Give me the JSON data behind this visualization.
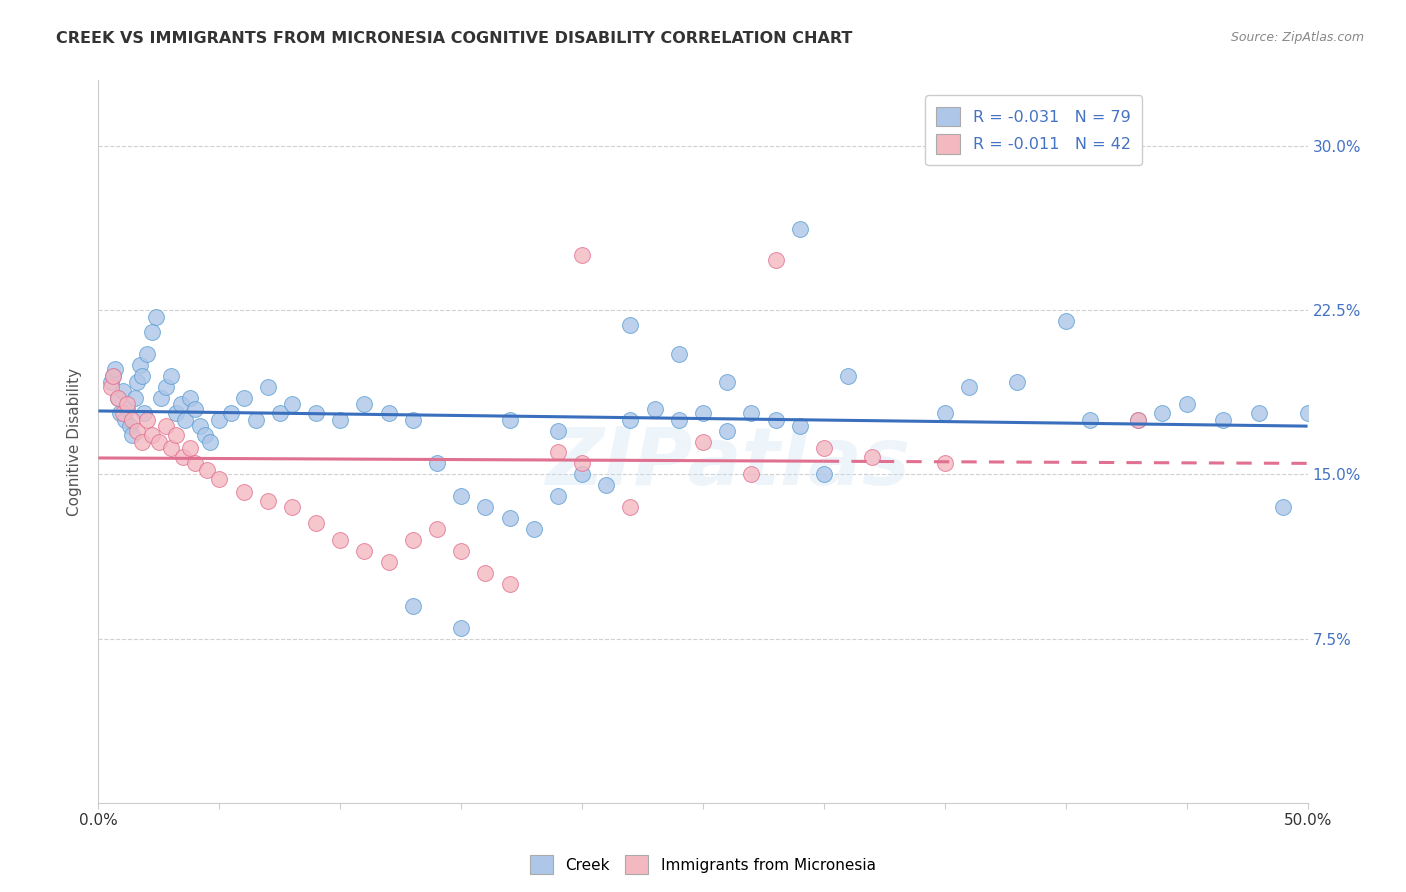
{
  "title": "CREEK VS IMMIGRANTS FROM MICRONESIA COGNITIVE DISABILITY CORRELATION CHART",
  "source": "Source: ZipAtlas.com",
  "ylabel": "Cognitive Disability",
  "xlim": [
    0.0,
    0.5
  ],
  "ylim": [
    0.0,
    0.33
  ],
  "legend_labels": [
    "Creek",
    "Immigrants from Micronesia"
  ],
  "creek_R": "-0.031",
  "creek_N": "79",
  "micro_R": "-0.011",
  "micro_N": "42",
  "creek_color": "#aec6e8",
  "creek_edge_color": "#5a9fd4",
  "micro_color": "#f4b8c1",
  "micro_edge_color": "#e07090",
  "creek_line_color": "#3a6fbd",
  "micro_line_color": "#e07090",
  "background_color": "#ffffff",
  "grid_color": "#cccccc",
  "title_color": "#333333",
  "axis_label_color": "#555555",
  "tick_color_right": "#4472c4",
  "r_value_color": "#e00060",
  "n_value_color": "#4472c4",
  "watermark": "ZIPatlas",
  "creek_scatter_x": [
    0.005,
    0.006,
    0.007,
    0.008,
    0.009,
    0.01,
    0.011,
    0.012,
    0.013,
    0.014,
    0.015,
    0.016,
    0.017,
    0.018,
    0.019,
    0.02,
    0.022,
    0.024,
    0.026,
    0.028,
    0.03,
    0.032,
    0.034,
    0.036,
    0.038,
    0.04,
    0.042,
    0.044,
    0.046,
    0.05,
    0.055,
    0.06,
    0.065,
    0.07,
    0.075,
    0.08,
    0.09,
    0.1,
    0.11,
    0.12,
    0.13,
    0.14,
    0.15,
    0.16,
    0.17,
    0.18,
    0.19,
    0.2,
    0.21,
    0.22,
    0.23,
    0.24,
    0.25,
    0.26,
    0.27,
    0.28,
    0.29,
    0.3,
    0.31,
    0.35,
    0.36,
    0.38,
    0.4,
    0.41,
    0.43,
    0.44,
    0.45,
    0.465,
    0.48,
    0.49,
    0.5,
    0.29,
    0.26,
    0.24,
    0.22,
    0.19,
    0.17,
    0.15,
    0.13
  ],
  "creek_scatter_y": [
    0.192,
    0.195,
    0.198,
    0.185,
    0.178,
    0.188,
    0.175,
    0.18,
    0.172,
    0.168,
    0.185,
    0.192,
    0.2,
    0.195,
    0.178,
    0.205,
    0.215,
    0.222,
    0.185,
    0.19,
    0.195,
    0.178,
    0.182,
    0.175,
    0.185,
    0.18,
    0.172,
    0.168,
    0.165,
    0.175,
    0.178,
    0.185,
    0.175,
    0.19,
    0.178,
    0.182,
    0.178,
    0.175,
    0.182,
    0.178,
    0.175,
    0.155,
    0.14,
    0.135,
    0.13,
    0.125,
    0.14,
    0.15,
    0.145,
    0.175,
    0.18,
    0.175,
    0.178,
    0.17,
    0.178,
    0.175,
    0.172,
    0.15,
    0.195,
    0.178,
    0.19,
    0.192,
    0.22,
    0.175,
    0.175,
    0.178,
    0.182,
    0.175,
    0.178,
    0.135,
    0.178,
    0.262,
    0.192,
    0.205,
    0.218,
    0.17,
    0.175,
    0.08,
    0.09
  ],
  "micro_scatter_x": [
    0.005,
    0.006,
    0.008,
    0.01,
    0.012,
    0.014,
    0.016,
    0.018,
    0.02,
    0.022,
    0.025,
    0.028,
    0.03,
    0.032,
    0.035,
    0.038,
    0.04,
    0.045,
    0.05,
    0.06,
    0.07,
    0.08,
    0.09,
    0.1,
    0.11,
    0.12,
    0.13,
    0.14,
    0.15,
    0.16,
    0.17,
    0.19,
    0.2,
    0.22,
    0.25,
    0.27,
    0.3,
    0.32,
    0.35,
    0.28,
    0.43,
    0.2
  ],
  "micro_scatter_y": [
    0.19,
    0.195,
    0.185,
    0.178,
    0.182,
    0.175,
    0.17,
    0.165,
    0.175,
    0.168,
    0.165,
    0.172,
    0.162,
    0.168,
    0.158,
    0.162,
    0.155,
    0.152,
    0.148,
    0.142,
    0.138,
    0.135,
    0.128,
    0.12,
    0.115,
    0.11,
    0.12,
    0.125,
    0.115,
    0.105,
    0.1,
    0.16,
    0.155,
    0.135,
    0.165,
    0.15,
    0.162,
    0.158,
    0.155,
    0.248,
    0.175,
    0.25
  ]
}
